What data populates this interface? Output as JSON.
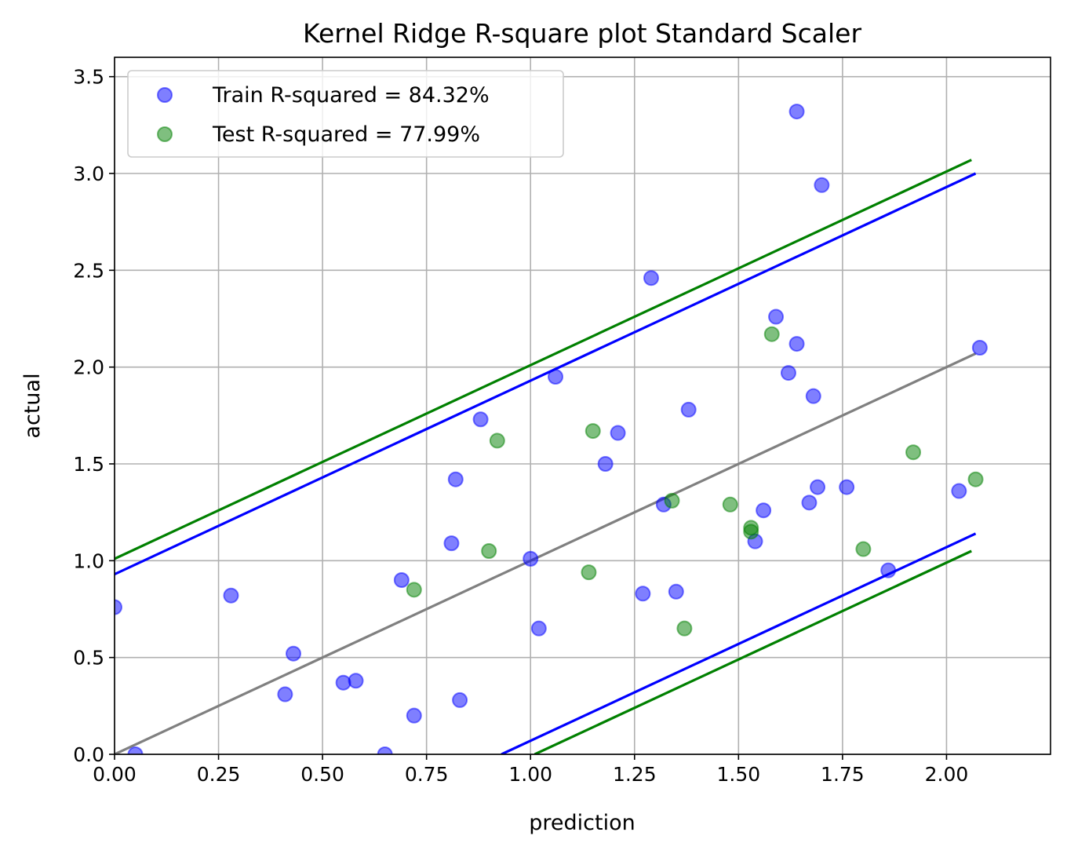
{
  "chart_data": {
    "type": "scatter",
    "title": "Kernel Ridge R-square plot Standard Scaler",
    "xlabel": "prediction",
    "ylabel": "actual",
    "xlim": [
      0,
      2.25
    ],
    "ylim": [
      0,
      3.6
    ],
    "xticks": [
      "0.00",
      "0.25",
      "0.50",
      "0.75",
      "1.00",
      "1.25",
      "1.50",
      "1.75",
      "2.00"
    ],
    "yticks": [
      "0.0",
      "0.5",
      "1.0",
      "1.5",
      "2.0",
      "2.5",
      "3.0",
      "3.5"
    ],
    "grid": true,
    "legend_position": "top-left",
    "series": [
      {
        "name": "Train R-squared = 84.32%",
        "color": "#0000ff",
        "points": [
          [
            0.0,
            0.76
          ],
          [
            0.05,
            0.0
          ],
          [
            0.28,
            0.82
          ],
          [
            0.41,
            0.31
          ],
          [
            0.43,
            0.52
          ],
          [
            0.55,
            0.37
          ],
          [
            0.58,
            0.38
          ],
          [
            0.65,
            0.0
          ],
          [
            0.69,
            0.9
          ],
          [
            0.72,
            0.2
          ],
          [
            0.81,
            1.09
          ],
          [
            0.82,
            1.42
          ],
          [
            0.83,
            0.28
          ],
          [
            0.88,
            1.73
          ],
          [
            1.0,
            1.01
          ],
          [
            1.02,
            0.65
          ],
          [
            1.06,
            1.95
          ],
          [
            1.18,
            1.5
          ],
          [
            1.21,
            1.66
          ],
          [
            1.27,
            0.83
          ],
          [
            1.29,
            2.46
          ],
          [
            1.32,
            1.29
          ],
          [
            1.35,
            0.84
          ],
          [
            1.38,
            1.78
          ],
          [
            1.54,
            1.1
          ],
          [
            1.56,
            1.26
          ],
          [
            1.59,
            2.26
          ],
          [
            1.62,
            1.97
          ],
          [
            1.64,
            2.12
          ],
          [
            1.64,
            3.32
          ],
          [
            1.67,
            1.3
          ],
          [
            1.68,
            1.85
          ],
          [
            1.69,
            1.38
          ],
          [
            1.7,
            2.94
          ],
          [
            1.76,
            1.38
          ],
          [
            1.86,
            0.95
          ],
          [
            2.03,
            1.36
          ],
          [
            2.08,
            2.1
          ]
        ]
      },
      {
        "name": "Test R-squared = 77.99%",
        "color": "#008000",
        "points": [
          [
            0.72,
            0.85
          ],
          [
            0.9,
            1.05
          ],
          [
            0.92,
            1.62
          ],
          [
            1.14,
            0.94
          ],
          [
            1.15,
            1.67
          ],
          [
            1.34,
            1.31
          ],
          [
            1.37,
            0.65
          ],
          [
            1.48,
            1.29
          ],
          [
            1.53,
            1.17
          ],
          [
            1.53,
            1.15
          ],
          [
            1.58,
            2.17
          ],
          [
            1.8,
            1.06
          ],
          [
            1.92,
            1.56
          ],
          [
            2.07,
            1.42
          ]
        ]
      }
    ],
    "lines": [
      {
        "label": "identity",
        "color": "#808080",
        "x": [
          0.0,
          2.07
        ],
        "y": [
          0.0,
          2.07
        ]
      },
      {
        "label": "train upper band",
        "color": "#0000ff",
        "x": [
          0.0,
          2.07
        ],
        "y": [
          0.93,
          3.0
        ]
      },
      {
        "label": "train lower band",
        "color": "#0000ff",
        "x": [
          0.93,
          2.07
        ],
        "y": [
          0.0,
          1.14
        ]
      },
      {
        "label": "test upper band",
        "color": "#008000",
        "x": [
          0.0,
          2.06
        ],
        "y": [
          1.01,
          3.07
        ]
      },
      {
        "label": "test lower band",
        "color": "#008000",
        "x": [
          1.01,
          2.06
        ],
        "y": [
          0.0,
          1.05
        ]
      }
    ]
  }
}
